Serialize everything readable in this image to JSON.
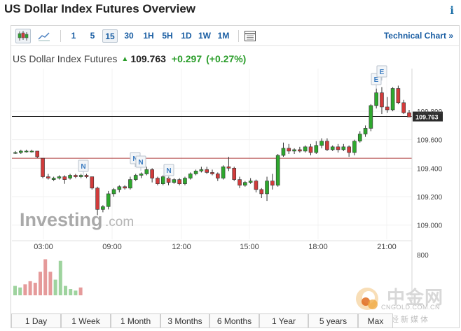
{
  "page": {
    "title": "US Dollar Index Futures Overview",
    "info_icon": "info-icon"
  },
  "toolbar": {
    "candle_icon": "candlestick-icon",
    "line_icon": "line-chart-icon",
    "intervals": [
      "1",
      "5",
      "15",
      "30",
      "1H",
      "5H",
      "1D",
      "1W",
      "1M"
    ],
    "active_interval": "15",
    "table_icon": "table-icon",
    "technical_chart": "Technical Chart",
    "technical_chart_arrow": "»"
  },
  "quote": {
    "name": "US Dollar Index Futures",
    "price": "109.763",
    "change": "+0.297",
    "change_pct": "(+0.27%)",
    "direction": "up"
  },
  "watermark": {
    "investing": "Investing",
    "dotcom": ".com",
    "cn_logo": "中金网",
    "cn_url": "CNGOLD.COM.CN",
    "cn_sub": "中文财经新媒体"
  },
  "timeframes": [
    "1 Day",
    "1 Week",
    "1 Month",
    "3 Months",
    "6 Months",
    "1 Year",
    "5 years",
    "Max"
  ],
  "colors": {
    "up": "#2ea82e",
    "down": "#d23b3b",
    "vol_up": "#9ed39e",
    "vol_down": "#e59a9a",
    "link": "#1a5ea3"
  },
  "chart_data": {
    "type": "candlestick",
    "interval": "15",
    "x_tick_labels": [
      "03:00",
      "09:00",
      "12:00",
      "15:00",
      "18:00",
      "21:00"
    ],
    "y_tick_labels": [
      "109.000",
      "109.200",
      "109.400",
      "109.600",
      "109.800"
    ],
    "ylim": [
      108.9,
      110.1
    ],
    "volume_axis_label": "800",
    "last_price_label": "109.763",
    "reference_price": 109.47,
    "events": [
      {
        "label": "N",
        "near_time": "07:30"
      },
      {
        "label": "N",
        "near_time": "10:00"
      },
      {
        "label": "N",
        "near_time": "10:20"
      },
      {
        "label": "N",
        "near_time": "11:45"
      },
      {
        "label": "E",
        "near_time": "20:30"
      },
      {
        "label": "E",
        "near_time": "20:45"
      }
    ],
    "candles": [
      {
        "o": 109.51,
        "h": 109.52,
        "l": 109.5,
        "c": 109.51
      },
      {
        "o": 109.51,
        "h": 109.53,
        "l": 109.5,
        "c": 109.52
      },
      {
        "o": 109.52,
        "h": 109.53,
        "l": 109.51,
        "c": 109.52
      },
      {
        "o": 109.52,
        "h": 109.53,
        "l": 109.51,
        "c": 109.52
      },
      {
        "o": 109.52,
        "h": 109.52,
        "l": 109.47,
        "c": 109.48
      },
      {
        "o": 109.47,
        "h": 109.47,
        "l": 109.33,
        "c": 109.34
      },
      {
        "o": 109.34,
        "h": 109.36,
        "l": 109.32,
        "c": 109.33
      },
      {
        "o": 109.32,
        "h": 109.34,
        "l": 109.31,
        "c": 109.33
      },
      {
        "o": 109.33,
        "h": 109.35,
        "l": 109.32,
        "c": 109.34
      },
      {
        "o": 109.34,
        "h": 109.35,
        "l": 109.29,
        "c": 109.32
      },
      {
        "o": 109.33,
        "h": 109.36,
        "l": 109.32,
        "c": 109.35
      },
      {
        "o": 109.35,
        "h": 109.36,
        "l": 109.33,
        "c": 109.34
      },
      {
        "o": 109.34,
        "h": 109.36,
        "l": 109.33,
        "c": 109.35
      },
      {
        "o": 109.35,
        "h": 109.36,
        "l": 109.33,
        "c": 109.34
      },
      {
        "o": 109.34,
        "h": 109.34,
        "l": 109.25,
        "c": 109.26
      },
      {
        "o": 109.26,
        "h": 109.27,
        "l": 109.07,
        "c": 109.11
      },
      {
        "o": 109.11,
        "h": 109.14,
        "l": 109.09,
        "c": 109.13
      },
      {
        "o": 109.13,
        "h": 109.24,
        "l": 109.11,
        "c": 109.22
      },
      {
        "o": 109.22,
        "h": 109.26,
        "l": 109.2,
        "c": 109.25
      },
      {
        "o": 109.25,
        "h": 109.28,
        "l": 109.23,
        "c": 109.27
      },
      {
        "o": 109.27,
        "h": 109.28,
        "l": 109.25,
        "c": 109.26
      },
      {
        "o": 109.26,
        "h": 109.34,
        "l": 109.25,
        "c": 109.32
      },
      {
        "o": 109.32,
        "h": 109.36,
        "l": 109.31,
        "c": 109.35
      },
      {
        "o": 109.35,
        "h": 109.37,
        "l": 109.33,
        "c": 109.36
      },
      {
        "o": 109.36,
        "h": 109.41,
        "l": 109.35,
        "c": 109.39
      },
      {
        "o": 109.39,
        "h": 109.4,
        "l": 109.3,
        "c": 109.33
      },
      {
        "o": 109.33,
        "h": 109.34,
        "l": 109.28,
        "c": 109.29
      },
      {
        "o": 109.29,
        "h": 109.35,
        "l": 109.28,
        "c": 109.34
      },
      {
        "o": 109.33,
        "h": 109.34,
        "l": 109.28,
        "c": 109.3
      },
      {
        "o": 109.3,
        "h": 109.33,
        "l": 109.29,
        "c": 109.32
      },
      {
        "o": 109.32,
        "h": 109.33,
        "l": 109.28,
        "c": 109.29
      },
      {
        "o": 109.29,
        "h": 109.34,
        "l": 109.28,
        "c": 109.33
      },
      {
        "o": 109.33,
        "h": 109.37,
        "l": 109.32,
        "c": 109.36
      },
      {
        "o": 109.36,
        "h": 109.39,
        "l": 109.35,
        "c": 109.38
      },
      {
        "o": 109.38,
        "h": 109.41,
        "l": 109.37,
        "c": 109.39
      },
      {
        "o": 109.39,
        "h": 109.41,
        "l": 109.36,
        "c": 109.37
      },
      {
        "o": 109.37,
        "h": 109.39,
        "l": 109.35,
        "c": 109.36
      },
      {
        "o": 109.36,
        "h": 109.37,
        "l": 109.31,
        "c": 109.33
      },
      {
        "o": 109.33,
        "h": 109.42,
        "l": 109.32,
        "c": 109.41
      },
      {
        "o": 109.41,
        "h": 109.48,
        "l": 109.38,
        "c": 109.4
      },
      {
        "o": 109.4,
        "h": 109.41,
        "l": 109.31,
        "c": 109.32
      },
      {
        "o": 109.32,
        "h": 109.34,
        "l": 109.26,
        "c": 109.28
      },
      {
        "o": 109.28,
        "h": 109.31,
        "l": 109.27,
        "c": 109.3
      },
      {
        "o": 109.3,
        "h": 109.33,
        "l": 109.29,
        "c": 109.31
      },
      {
        "o": 109.31,
        "h": 109.32,
        "l": 109.23,
        "c": 109.25
      },
      {
        "o": 109.25,
        "h": 109.26,
        "l": 109.19,
        "c": 109.22
      },
      {
        "o": 109.22,
        "h": 109.34,
        "l": 109.17,
        "c": 109.31
      },
      {
        "o": 109.31,
        "h": 109.36,
        "l": 109.25,
        "c": 109.28
      },
      {
        "o": 109.28,
        "h": 109.5,
        "l": 109.27,
        "c": 109.49
      },
      {
        "o": 109.49,
        "h": 109.58,
        "l": 109.48,
        "c": 109.54
      },
      {
        "o": 109.54,
        "h": 109.57,
        "l": 109.5,
        "c": 109.52
      },
      {
        "o": 109.52,
        "h": 109.54,
        "l": 109.5,
        "c": 109.53
      },
      {
        "o": 109.53,
        "h": 109.55,
        "l": 109.51,
        "c": 109.52
      },
      {
        "o": 109.52,
        "h": 109.56,
        "l": 109.51,
        "c": 109.55
      },
      {
        "o": 109.55,
        "h": 109.57,
        "l": 109.49,
        "c": 109.51
      },
      {
        "o": 109.51,
        "h": 109.59,
        "l": 109.5,
        "c": 109.56
      },
      {
        "o": 109.56,
        "h": 109.61,
        "l": 109.54,
        "c": 109.59
      },
      {
        "o": 109.59,
        "h": 109.61,
        "l": 109.52,
        "c": 109.53
      },
      {
        "o": 109.53,
        "h": 109.56,
        "l": 109.52,
        "c": 109.55
      },
      {
        "o": 109.55,
        "h": 109.57,
        "l": 109.51,
        "c": 109.53
      },
      {
        "o": 109.53,
        "h": 109.57,
        "l": 109.52,
        "c": 109.55
      },
      {
        "o": 109.55,
        "h": 109.56,
        "l": 109.48,
        "c": 109.51
      },
      {
        "o": 109.51,
        "h": 109.6,
        "l": 109.49,
        "c": 109.59
      },
      {
        "o": 109.59,
        "h": 109.66,
        "l": 109.58,
        "c": 109.64
      },
      {
        "o": 109.64,
        "h": 109.7,
        "l": 109.62,
        "c": 109.68
      },
      {
        "o": 109.68,
        "h": 109.85,
        "l": 109.66,
        "c": 109.84
      },
      {
        "o": 109.84,
        "h": 109.96,
        "l": 109.82,
        "c": 109.93
      },
      {
        "o": 109.93,
        "h": 109.97,
        "l": 109.78,
        "c": 109.83
      },
      {
        "o": 109.83,
        "h": 109.9,
        "l": 109.79,
        "c": 109.81
      },
      {
        "o": 109.81,
        "h": 109.97,
        "l": 109.8,
        "c": 109.96
      },
      {
        "o": 109.96,
        "h": 109.98,
        "l": 109.85,
        "c": 109.86
      },
      {
        "o": 109.86,
        "h": 109.88,
        "l": 109.78,
        "c": 109.79
      },
      {
        "o": 109.79,
        "h": 109.81,
        "l": 109.76,
        "c": 109.76
      }
    ],
    "volume": [
      {
        "v": 12,
        "up": true
      },
      {
        "v": 10,
        "up": true
      },
      {
        "v": 14,
        "up": false
      },
      {
        "v": 18,
        "up": false
      },
      {
        "v": 16,
        "up": false
      },
      {
        "v": 30,
        "up": false
      },
      {
        "v": 46,
        "up": false
      },
      {
        "v": 30,
        "up": false
      },
      {
        "v": 20,
        "up": true
      },
      {
        "v": 44,
        "up": true
      },
      {
        "v": 12,
        "up": true
      },
      {
        "v": 8,
        "up": true
      },
      {
        "v": 6,
        "up": true
      },
      {
        "v": 10,
        "up": false
      }
    ],
    "volume_max": 50
  }
}
